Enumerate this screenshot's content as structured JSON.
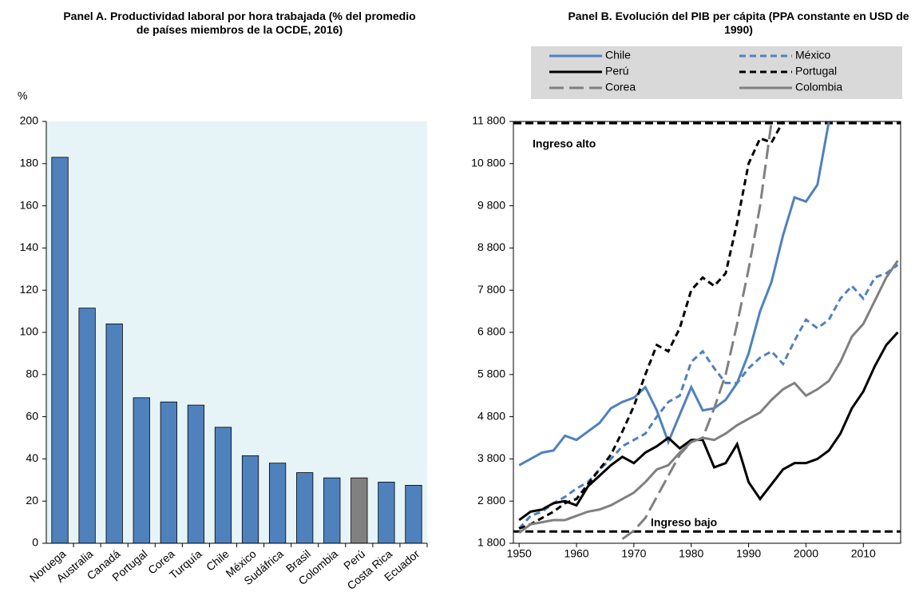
{
  "chart_data": [
    {
      "type": "bar",
      "title": "Panel A. Productividad laboral por hora trabajada (% del promedio de países miembros de la OCDE, 2016)",
      "y_label": "%",
      "categories": [
        "Noruega",
        "Australia",
        "Canadá",
        "Portugal",
        "Corea",
        "Turquía",
        "Chile",
        "México",
        "Sudáfrica",
        "Brasil",
        "Colombia",
        "Perú",
        "Costa Rica",
        "Ecuador"
      ],
      "values": [
        183,
        111.5,
        104,
        69,
        67,
        65.5,
        55,
        41.5,
        38,
        33.5,
        31,
        31,
        29,
        27.5
      ],
      "colors": [
        "#4f81bd",
        "#4f81bd",
        "#4f81bd",
        "#4f81bd",
        "#4f81bd",
        "#4f81bd",
        "#4f81bd",
        "#4f81bd",
        "#4f81bd",
        "#4f81bd",
        "#4f81bd",
        "#808080",
        "#4f81bd",
        "#4f81bd"
      ],
      "ylim": [
        0,
        200
      ],
      "yticks": [
        0,
        20,
        40,
        60,
        80,
        100,
        120,
        140,
        160,
        180,
        200
      ],
      "background": "#e6f4f8"
    },
    {
      "type": "line",
      "title": "Panel B. Evolución del PIB per cápita (PPA constante en USD de 1990)",
      "x": [
        1950,
        1952,
        1954,
        1956,
        1958,
        1960,
        1962,
        1964,
        1966,
        1968,
        1970,
        1972,
        1974,
        1976,
        1978,
        1980,
        1982,
        1984,
        1986,
        1988,
        1990,
        1992,
        1994,
        1996,
        1998,
        2000,
        2002,
        2004,
        2006,
        2008,
        2010,
        2012,
        2014,
        2016
      ],
      "series": [
        {
          "name": "Chile",
          "color": "#4f81bd",
          "dash": "solid",
          "values": [
            3650,
            3800,
            3950,
            4000,
            4350,
            4250,
            4450,
            4650,
            5000,
            5150,
            5250,
            5500,
            4950,
            4200,
            4850,
            5500,
            4950,
            5000,
            5200,
            5600,
            6300,
            7300,
            8000,
            9100,
            10000,
            9900,
            10300,
            11800,
            null,
            null,
            null,
            null,
            null,
            null
          ]
        },
        {
          "name": "México",
          "color": "#4f81bd",
          "dash": "dashed",
          "values": [
            2150,
            2450,
            2550,
            2750,
            2900,
            3100,
            3250,
            3550,
            3800,
            4100,
            4250,
            4400,
            4800,
            5150,
            5300,
            6100,
            6350,
            5950,
            5600,
            5600,
            5950,
            6200,
            6350,
            6050,
            6600,
            7100,
            6900,
            7100,
            7600,
            7900,
            7600,
            8100,
            8200,
            8400
          ]
        },
        {
          "name": "Perú",
          "color": "#000000",
          "dash": "solid",
          "values": [
            2350,
            2550,
            2600,
            2750,
            2800,
            2700,
            3150,
            3400,
            3650,
            3850,
            3700,
            3950,
            4100,
            4300,
            4050,
            4250,
            4250,
            3600,
            3700,
            4150,
            3250,
            2850,
            3200,
            3550,
            3700,
            3700,
            3800,
            4000,
            4400,
            5000,
            5400,
            6000,
            6500,
            6800
          ]
        },
        {
          "name": "Portugal",
          "color": "#000000",
          "dash": "dashed",
          "values": [
            2150,
            2250,
            2400,
            2550,
            2750,
            2850,
            3200,
            3550,
            3900,
            4450,
            5050,
            5800,
            6500,
            6350,
            6900,
            7800,
            8100,
            7900,
            8200,
            9400,
            10800,
            11400,
            11300,
            11800,
            null,
            null,
            null,
            null,
            null,
            null,
            null,
            null,
            null,
            null
          ]
        },
        {
          "name": "Corea",
          "color": "#808080",
          "dash": "long-dash",
          "values": [
            null,
            null,
            null,
            null,
            null,
            null,
            null,
            null,
            null,
            1900,
            2100,
            2400,
            2900,
            3400,
            3900,
            4200,
            4300,
            5000,
            5800,
            7000,
            8300,
            9800,
            11800,
            null,
            null,
            null,
            null,
            null,
            null,
            null,
            null,
            null,
            null,
            null
          ]
        },
        {
          "name": "Colombia",
          "color": "#808080",
          "dash": "solid",
          "values": [
            2050,
            2250,
            2300,
            2350,
            2350,
            2450,
            2550,
            2600,
            2700,
            2850,
            3000,
            3250,
            3550,
            3650,
            3950,
            4200,
            4300,
            4250,
            4400,
            4600,
            4750,
            4900,
            5200,
            5450,
            5600,
            5300,
            5450,
            5650,
            6100,
            6700,
            7000,
            7550,
            8100,
            8500
          ]
        }
      ],
      "reference_lines": [
        {
          "label": "Ingreso alto",
          "value": 11760
        },
        {
          "label": "Ingreso bajo",
          "value": 2080
        }
      ],
      "xlim": [
        1949,
        2016.5
      ],
      "xticks": [
        1950,
        1960,
        1970,
        1980,
        1990,
        2000,
        2010
      ],
      "ylim": [
        1800,
        11800
      ],
      "yticks": [
        {
          "value": 1800,
          "label": "1 800"
        },
        {
          "value": 2800,
          "label": "2 800"
        },
        {
          "value": 3800,
          "label": "3 800"
        },
        {
          "value": 4800,
          "label": "4 800"
        },
        {
          "value": 5800,
          "label": "5 800"
        },
        {
          "value": 6800,
          "label": "6 800"
        },
        {
          "value": 7800,
          "label": "7 800"
        },
        {
          "value": 8800,
          "label": "8 800"
        },
        {
          "value": 9800,
          "label": "9 800"
        },
        {
          "value": 10800,
          "label": "10 800"
        },
        {
          "value": 11800,
          "label": "11 800"
        }
      ],
      "legend_background": "#d9d9d9"
    }
  ]
}
